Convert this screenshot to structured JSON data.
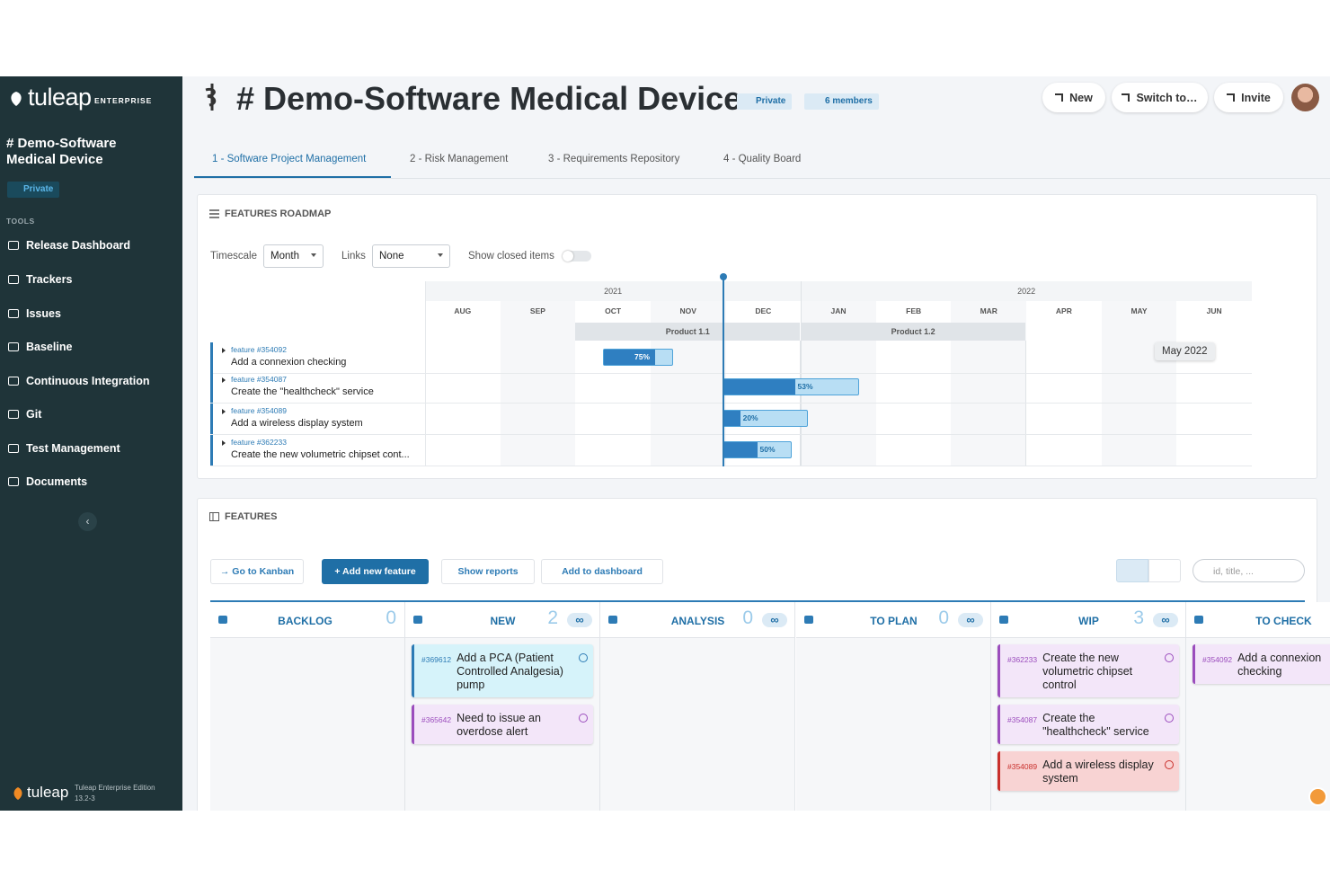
{
  "sidebar": {
    "logo": "tuleap",
    "edition": "ENTERPRISE",
    "project": "# Demo-Software Medical Device",
    "privacy": "Private",
    "tools_heading": "TOOLS",
    "tools": [
      "Release Dashboard",
      "Trackers",
      "Issues",
      "Baseline",
      "Continuous Integration",
      "Git",
      "Test Management",
      "Documents"
    ],
    "footer_logo": "tuleap",
    "footer_edition": "Tuleap Enterprise Edition",
    "footer_version": "13.2-3"
  },
  "header": {
    "title": "# Demo-Software Medical Device",
    "privacy": "Private",
    "members": "6 members",
    "actions": [
      "New",
      "Switch to…",
      "Invite"
    ]
  },
  "tabs": [
    "1 - Software Project Management",
    "2 - Risk Management",
    "3 - Requirements Repository",
    "4 - Quality Board"
  ],
  "roadmap": {
    "title": "FEATURES ROADMAP",
    "timescale_label": "Timescale",
    "timescale": "Month",
    "links_label": "Links",
    "links": "None",
    "show_closed": "Show closed items",
    "years": [
      "2021",
      "2022"
    ],
    "months": [
      "AUG",
      "SEP",
      "OCT",
      "NOV",
      "DEC",
      "JAN",
      "FEB",
      "MAR",
      "APR",
      "MAY",
      "JUN"
    ],
    "iterations": [
      "Product 1.1",
      "Product 1.2"
    ],
    "tooltip": "May 2022",
    "tasks": [
      {
        "ref": "feature #354092",
        "title": "Add a connexion checking",
        "progress": 75,
        "progress_label": "75%"
      },
      {
        "ref": "feature #354087",
        "title": "Create the \"healthcheck\" service",
        "progress": 53,
        "progress_label": "53%"
      },
      {
        "ref": "feature #354089",
        "title": "Add a wireless display system",
        "progress": 20,
        "progress_label": "20%"
      },
      {
        "ref": "feature #362233",
        "title": "Create the new volumetric chipset cont...",
        "progress": 50,
        "progress_label": "50%"
      }
    ]
  },
  "features": {
    "title": "FEATURES",
    "actions": [
      "→ Go to Kanban",
      "+ Add new feature",
      "Show reports",
      "Add to dashboard"
    ],
    "search_placeholder": "id, title, ...",
    "columns": [
      {
        "name": "BACKLOG",
        "count": 0,
        "cards": []
      },
      {
        "name": "NEW",
        "count": 2,
        "wip_limit": "∞",
        "cards": [
          {
            "id": "#369612",
            "title": "Add a PCA (Patient Controlled Analgesia) pump",
            "color": "#d6f3fa"
          },
          {
            "id": "#365642",
            "title": "Need to issue an overdose alert",
            "color": "#f3e6f9"
          }
        ]
      },
      {
        "name": "ANALYSIS",
        "count": 0,
        "wip_limit": "∞",
        "cards": []
      },
      {
        "name": "TO PLAN",
        "count": 0,
        "wip_limit": "∞",
        "cards": []
      },
      {
        "name": "WIP",
        "count": 3,
        "wip_limit": "∞",
        "cards": [
          {
            "id": "#362233",
            "title": "Create the new volumetric chipset control",
            "color": "#f3e6f9"
          },
          {
            "id": "#354087",
            "title": "Create the \"healthcheck\" service",
            "color": "#f3e6f9"
          },
          {
            "id": "#354089",
            "title": "Add a wireless display system",
            "color": "#f8d3d3"
          }
        ]
      },
      {
        "name": "TO CHECK",
        "cards": [
          {
            "id": "#354092",
            "title": "Add a connexion checking",
            "color": "#f3e6f9"
          }
        ]
      }
    ]
  }
}
